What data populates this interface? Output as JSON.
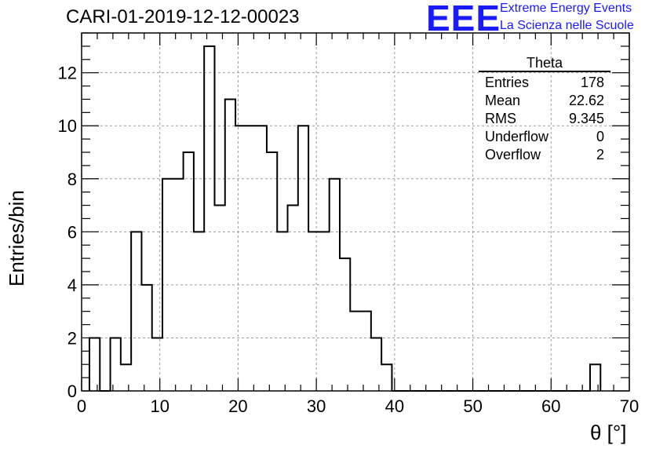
{
  "title": "CARI-01-2019-12-12-00023",
  "logo": {
    "mark": "EEE",
    "line1": "Extreme Energy Events",
    "line2": "La Scienza nelle Scuole",
    "color": "#1a1aff"
  },
  "stats": {
    "name": "Theta",
    "rows": [
      {
        "label": "Entries",
        "value": "178"
      },
      {
        "label": "Mean",
        "value": "22.62"
      },
      {
        "label": "RMS",
        "value": "9.345"
      },
      {
        "label": "Underflow",
        "value": "0"
      },
      {
        "label": "Overflow",
        "value": "2"
      }
    ]
  },
  "chart_data": {
    "type": "bar",
    "style": "step-histogram",
    "title": "CARI-01-2019-12-12-00023",
    "xlabel": "θ [°]",
    "ylabel": "Entries/bin",
    "xlim": [
      0,
      70
    ],
    "ylim": [
      0,
      13.5
    ],
    "grid": true,
    "bin_edges_start": 1.0,
    "bin_width": 1.333,
    "counts": [
      2,
      0,
      2,
      1,
      6,
      4,
      2,
      8,
      8,
      9,
      6,
      13,
      7,
      11,
      10,
      10,
      10,
      9,
      6,
      7,
      10,
      6,
      6,
      8,
      5,
      3,
      3,
      2,
      1,
      0,
      0,
      0,
      0,
      0,
      0,
      0,
      0,
      0,
      0,
      0,
      0,
      0,
      0,
      0,
      0,
      0,
      0,
      0,
      1
    ],
    "xticks": [
      0,
      10,
      20,
      30,
      40,
      50,
      60,
      70
    ],
    "yticks": [
      0,
      2,
      4,
      6,
      8,
      10,
      12
    ],
    "line_color": "#000000"
  }
}
